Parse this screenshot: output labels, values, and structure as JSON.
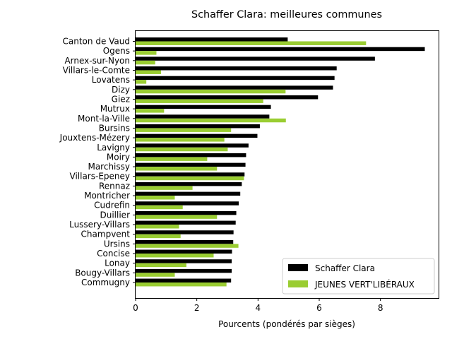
{
  "chart_data": {
    "type": "bar",
    "orientation": "horizontal",
    "title": "Schaffer Clara: meilleures communes",
    "xlabel": "Pourcents (pondérés par sièges)",
    "ylabel": "",
    "xlim": [
      0,
      9.9
    ],
    "xticks": [
      0,
      2,
      4,
      6,
      8
    ],
    "grid": false,
    "legend_position": "lower-right",
    "categories": [
      "Canton de Vaud",
      "Ogens",
      "Arnex-sur-Nyon",
      "Villars-le-Comte",
      "Lovatens",
      "Dizy",
      "Giez",
      "Mutrux",
      "Mont-la-Ville",
      "Bursins",
      "Jouxtens-Mézery",
      "Lavigny",
      "Moiry",
      "Marchissy",
      "Villars-Epeney",
      "Rennaz",
      "Montricher",
      "Cudrefin",
      "Duillier",
      "Lussery-Villars",
      "Champvent",
      "Ursins",
      "Concise",
      "Lonay",
      "Bougy-Villars",
      "Commugny"
    ],
    "series": [
      {
        "name": "Schaffer Clara",
        "color": "#000000",
        "values": [
          4.97,
          9.45,
          7.82,
          6.57,
          6.5,
          6.45,
          5.96,
          4.42,
          4.37,
          4.06,
          3.98,
          3.69,
          3.61,
          3.59,
          3.56,
          3.47,
          3.42,
          3.37,
          3.29,
          3.27,
          3.2,
          3.19,
          3.15,
          3.14,
          3.14,
          3.12
        ]
      },
      {
        "name": "JEUNES VERT'LIBÉRAUX",
        "color": "#9acd32",
        "values": [
          7.53,
          0.68,
          0.64,
          0.83,
          0.35,
          4.9,
          4.17,
          0.93,
          4.91,
          3.12,
          2.9,
          3.01,
          2.34,
          2.66,
          3.54,
          1.86,
          1.28,
          1.54,
          2.66,
          1.42,
          1.47,
          3.36,
          2.55,
          1.66,
          1.28,
          2.97
        ]
      }
    ]
  }
}
